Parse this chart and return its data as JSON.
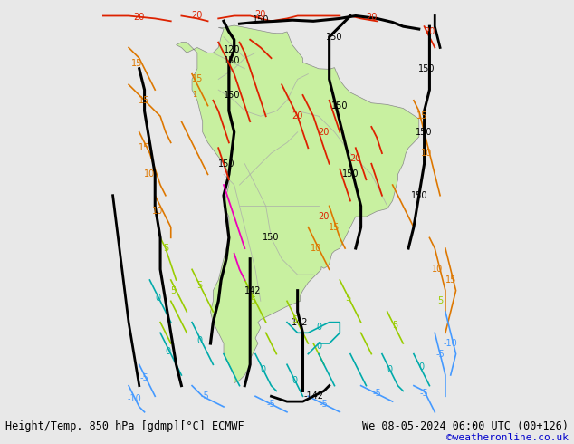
{
  "title_left": "Height/Temp. 850 hPa [gdmp][°C] ECMWF",
  "title_right": "We 08-05-2024 06:00 UTC (00+126)",
  "credit": "©weatheronline.co.uk",
  "bg_color": "#e8e8e8",
  "land_color": "#d2d2d2",
  "sa_fill_color": "#c8f0a0",
  "figsize": [
    6.34,
    4.9
  ],
  "dpi": 100,
  "xlim": [
    -95,
    -25
  ],
  "ylim": [
    -62,
    17
  ],
  "title_fontsize": 8.5,
  "credit_fontsize": 8
}
